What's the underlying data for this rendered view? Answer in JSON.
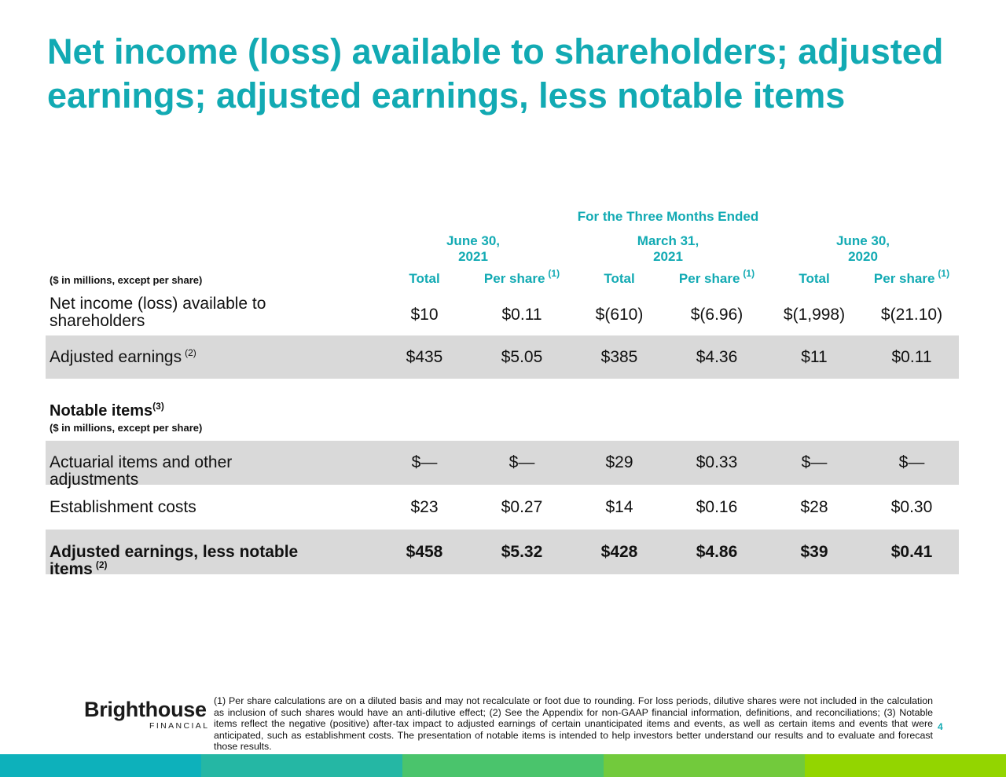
{
  "title": "Net income (loss) available to shareholders; adjusted earnings; adjusted earnings, less notable items",
  "table": {
    "period_header": "For the Three Months Ended",
    "periods": [
      {
        "line1": "June 30,",
        "line2": "2021"
      },
      {
        "line1": "March 31,",
        "line2": "2021"
      },
      {
        "line1": "June 30,",
        "line2": "2020"
      }
    ],
    "units_note": "($ in millions, except per share)",
    "column_headers": [
      {
        "text": "Total"
      },
      {
        "text": "Per share",
        "note": "(1)"
      },
      {
        "text": "Total"
      },
      {
        "text": "Per share",
        "note": "(1)"
      },
      {
        "text": "Total"
      },
      {
        "text": "Per share",
        "note": "(1)"
      }
    ],
    "rows": [
      {
        "label": "Net income (loss) available to shareholders",
        "values": [
          "$10",
          "$0.11",
          "$(610)",
          "$(6.96)",
          "$(1,998)",
          "$(21.10)"
        ]
      },
      {
        "label": "Adjusted earnings",
        "note": "(2)",
        "values": [
          "$435",
          "$5.05",
          "$385",
          "$4.36",
          "$11",
          "$0.11"
        ]
      }
    ],
    "notable_items": {
      "heading": "Notable items",
      "note": "(3)",
      "units_note": "($ in millions, except per share)",
      "rows": [
        {
          "label": "Actuarial items and other adjustments",
          "values": [
            "$—",
            "$—",
            "$29",
            "$0.33",
            "$—",
            "$—"
          ]
        },
        {
          "label": "Establishment costs",
          "values": [
            "$23",
            "$0.27",
            "$14",
            "$0.16",
            "$28",
            "$0.30"
          ]
        }
      ]
    },
    "total_row": {
      "label": "Adjusted earnings, less notable items",
      "note": "(2)",
      "values": [
        "$458",
        "$5.32",
        "$428",
        "$4.86",
        "$39",
        "$0.41"
      ]
    }
  },
  "footer": {
    "logo_name": "Brighthouse",
    "logo_sub": "FINANCIAL",
    "footnote": "(1) Per share calculations are on a diluted basis and may not recalculate or foot due to rounding. For loss periods, dilutive shares were not included in the calculation as inclusion of such shares would have an anti-dilutive effect; (2) See the Appendix for non-GAAP financial information, definitions, and reconciliations;  (3) Notable items reflect the negative (positive) after-tax impact to adjusted earnings of certain unanticipated items and events, as well as certain items and events that were anticipated, such as establishment costs. The presentation of notable items is intended to help investors better understand our results and to evaluate and forecast those results.",
    "page_number": "4"
  }
}
